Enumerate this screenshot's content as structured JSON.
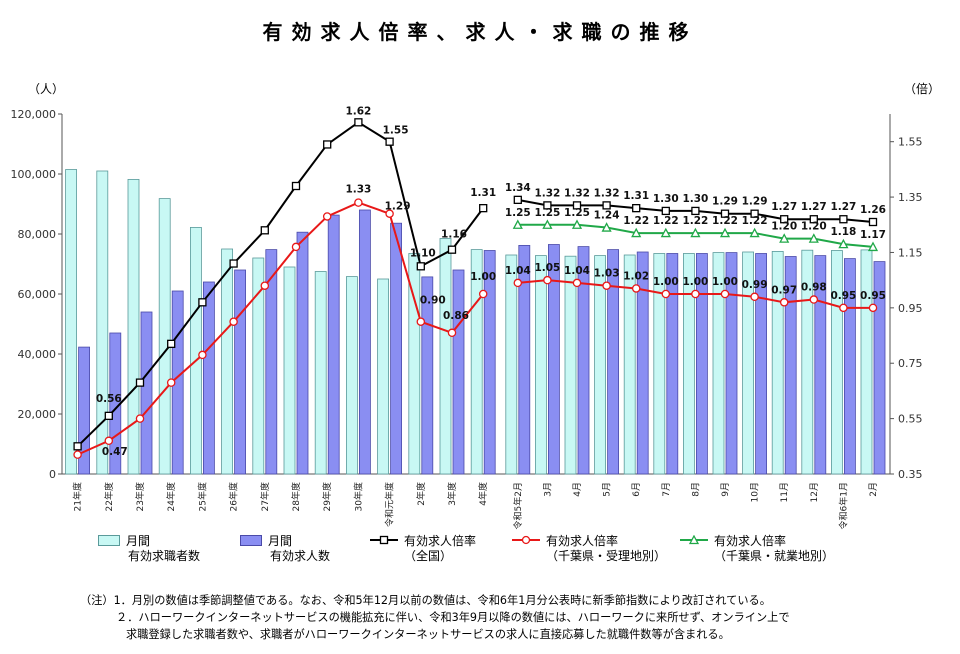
{
  "title": "有効求人倍率、求人・求職の推移",
  "left_unit": "（人）",
  "right_unit": "（倍）",
  "legend": [
    {
      "line1": "月間",
      "line2": "有効求職者数",
      "kind": "bar",
      "color": "#c8f8f4",
      "stroke": "#5a9a9a"
    },
    {
      "line1": "月間",
      "line2": "有効求人数",
      "kind": "bar",
      "color": "#8a8ef2",
      "stroke": "#4a4aa8"
    },
    {
      "line1": "有効求人倍率",
      "line2": "（全国）",
      "kind": "line",
      "color": "#000000"
    },
    {
      "line1": "有効求人倍率",
      "line2": "（千葉県・受理地別）",
      "kind": "line",
      "color": "#e81818"
    },
    {
      "line1": "有効求人倍率",
      "line2": "（千葉県・就業地別）",
      "kind": "line",
      "color": "#20a848",
      "marker": "triangle"
    }
  ],
  "notes": [
    "（注）1．月別の数値は季節調整値である。なお、令和5年12月以前の数値は、令和6年1月分公表時に新季節指数により改訂されている。",
    "２．ハローワークインターネットサービスの機能拡充に伴い、令和3年9月以降の数値には、ハローワークに来所せず、オンライン上で",
    "求職登録した求職者数や、求職者がハローワークインターネットサービスの求人に直接応募した就職件数等が含まれる。"
  ],
  "chart_data": [
    {
      "type": "bar",
      "name_group": "annual",
      "categories": [
        "21年度",
        "22年度",
        "23年度",
        "24年度",
        "25年度",
        "26年度",
        "27年度",
        "28年度",
        "29年度",
        "30年度",
        "令和元年度",
        "2年度",
        "3年度",
        "4年度"
      ],
      "series": [
        {
          "name": "月間 有効求職者数",
          "axis": "left",
          "values": [
            101500,
            101000,
            98200,
            91800,
            82200,
            75000,
            72000,
            69000,
            67500,
            65800,
            65000,
            73500,
            78500,
            74800
          ]
        },
        {
          "name": "月間 有効求人数",
          "axis": "left",
          "values": [
            42300,
            47000,
            54000,
            61000,
            64000,
            68000,
            74800,
            80600,
            86300,
            88000,
            83600,
            65700,
            68000,
            74500
          ]
        },
        {
          "name": "有効求人倍率 （全国）",
          "axis": "right",
          "type": "line",
          "values": [
            0.45,
            0.56,
            0.68,
            0.82,
            0.97,
            1.11,
            1.23,
            1.39,
            1.54,
            1.62,
            1.55,
            1.1,
            1.16,
            1.31
          ]
        },
        {
          "name": "有効求人倍率 （千葉県・受理地別）",
          "axis": "right",
          "type": "line",
          "values": [
            0.42,
            0.47,
            0.55,
            0.68,
            0.78,
            0.9,
            1.03,
            1.17,
            1.28,
            1.33,
            1.29,
            0.9,
            0.86,
            1.0
          ]
        }
      ],
      "data_labels": [
        {
          "series": 2,
          "index": 1,
          "text": "0.56"
        },
        {
          "series": 3,
          "index": 1,
          "text": "0.47"
        },
        {
          "series": 2,
          "index": 9,
          "text": "1.62"
        },
        {
          "series": 2,
          "index": 10,
          "text": "1.55"
        },
        {
          "series": 3,
          "index": 9,
          "text": "1.33"
        },
        {
          "series": 3,
          "index": 10,
          "text": "1.29"
        },
        {
          "series": 2,
          "index": 11,
          "text": "1.10"
        },
        {
          "series": 2,
          "index": 12,
          "text": "1.16"
        },
        {
          "series": 2,
          "index": 13,
          "text": "1.31"
        },
        {
          "series": 3,
          "index": 11,
          "text": "0.90"
        },
        {
          "series": 3,
          "index": 12,
          "text": "0.86"
        },
        {
          "series": 3,
          "index": 13,
          "text": "1.00"
        }
      ],
      "y_left": {
        "ylim": [
          0,
          120000
        ],
        "ticks": [
          "0",
          "20,000",
          "40,000",
          "60,000",
          "80,000",
          "100,000",
          "120,000"
        ]
      },
      "y_right": {
        "ylim": [
          0.35,
          1.65
        ],
        "ticks": [
          "0.35",
          "0.55",
          "0.75",
          "0.95",
          "1.15",
          "1.35",
          "1.55"
        ]
      }
    },
    {
      "type": "bar",
      "name_group": "monthly",
      "categories": [
        "令和5年2月",
        "3月",
        "4月",
        "5月",
        "6月",
        "7月",
        "8月",
        "9月",
        "10月",
        "11月",
        "12月",
        "令和6年1月",
        "2月"
      ],
      "series": [
        {
          "name": "月間 有効求職者数",
          "axis": "left",
          "values": [
            73000,
            72800,
            72600,
            72800,
            73000,
            73500,
            73500,
            73800,
            74000,
            74200,
            74600,
            74500,
            74700
          ]
        },
        {
          "name": "月間 有効求人数",
          "axis": "left",
          "values": [
            76200,
            76500,
            75800,
            74800,
            74000,
            73500,
            73500,
            73800,
            73500,
            72500,
            72800,
            71800,
            70800
          ]
        },
        {
          "name": "有効求人倍率 （全国）",
          "axis": "right",
          "type": "line",
          "values": [
            1.34,
            1.32,
            1.32,
            1.32,
            1.31,
            1.3,
            1.3,
            1.29,
            1.29,
            1.27,
            1.27,
            1.27,
            1.26
          ]
        },
        {
          "name": "有効求人倍率 （千葉県・受理地別）",
          "axis": "right",
          "type": "line",
          "values": [
            1.04,
            1.05,
            1.04,
            1.03,
            1.02,
            1.0,
            1.0,
            1.0,
            0.99,
            0.97,
            0.98,
            0.95,
            0.95
          ]
        },
        {
          "name": "有効求人倍率 （千葉県・就業地別）",
          "axis": "right",
          "type": "line",
          "values": [
            1.25,
            1.25,
            1.25,
            1.24,
            1.22,
            1.22,
            1.22,
            1.22,
            1.22,
            1.2,
            1.2,
            1.18,
            1.17
          ]
        }
      ],
      "data_labels": [
        {
          "series": 2,
          "text": [
            "1.34",
            "1.32",
            "1.32",
            "1.32",
            "1.31",
            "1.30",
            "1.30",
            "1.29",
            "1.29",
            "1.27",
            "1.27",
            "1.27",
            "1.26"
          ]
        },
        {
          "series": 4,
          "text": [
            "1.25",
            "1.25",
            "1.25",
            "1.24",
            "1.22",
            "1.22",
            "1.22",
            "1.22",
            "1.22",
            "1.20",
            "1.20",
            "1.18",
            "1.17"
          ]
        },
        {
          "series": 3,
          "text": [
            "1.04",
            "1.05",
            "1.04",
            "1.03",
            "1.02",
            "1.00",
            "1.00",
            "1.00",
            "0.99",
            "0.97",
            "0.98",
            "0.95",
            "0.95"
          ]
        }
      ]
    }
  ]
}
